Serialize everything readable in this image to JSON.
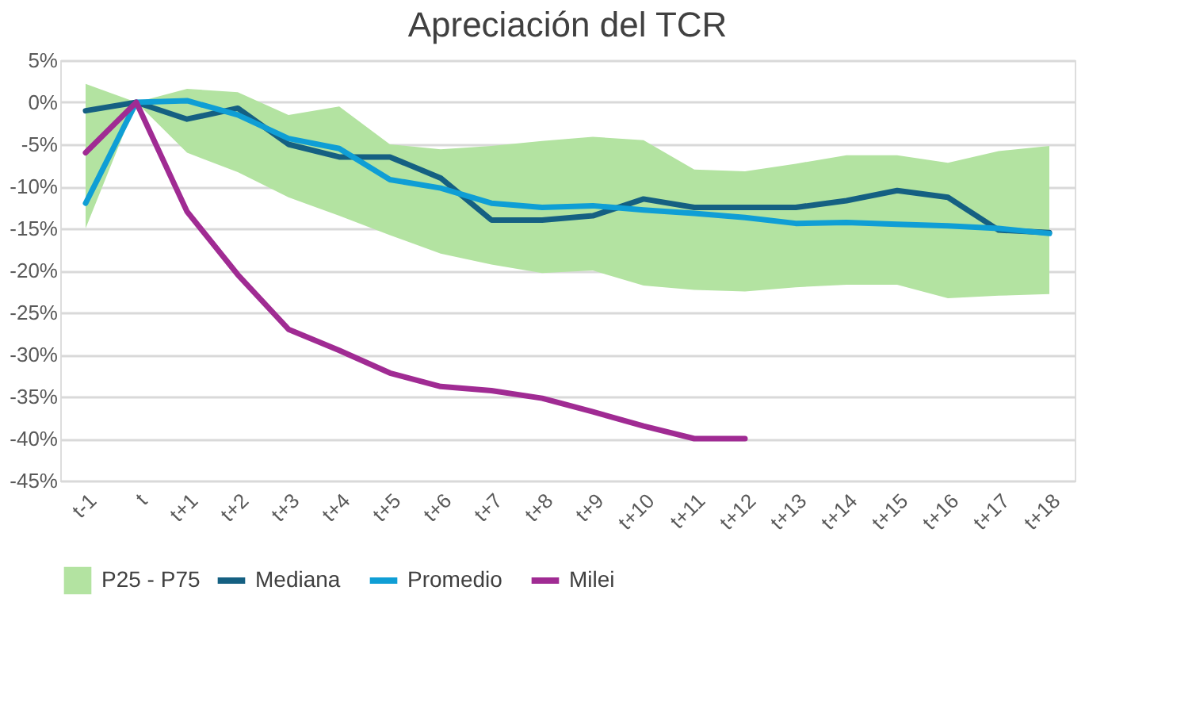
{
  "chart_data": {
    "type": "line",
    "title": "Apreciación del TCR",
    "categories": [
      "t-1",
      "t",
      "t+1",
      "t+2",
      "t+3",
      "t+4",
      "t+5",
      "t+6",
      "t+7",
      "t+8",
      "t+9",
      "t+10",
      "t+11",
      "t+12",
      "t+13",
      "t+14",
      "t+15",
      "t+16",
      "t+17",
      "t+18"
    ],
    "series": [
      {
        "name": "P25 - P75",
        "type": "area",
        "color": "#b3e3a1",
        "lower": [
          -15,
          0,
          -6,
          -8.3,
          -11.3,
          -13.5,
          -15.8,
          -18,
          -19.3,
          -20.3,
          -20,
          -21.8,
          -22.3,
          -22.5,
          -22,
          -21.7,
          -21.7,
          -23.3,
          -23,
          -22.8
        ],
        "values": [
          null,
          null,
          null,
          null,
          null,
          null,
          null,
          null,
          null,
          null,
          null,
          null,
          null,
          null,
          null,
          null,
          null,
          null,
          null,
          null
        ],
        "upper": [
          2.2,
          0,
          1.6,
          1.2,
          -1.5,
          -0.5,
          -5,
          -5.6,
          -5.2,
          -4.6,
          -4.1,
          -4.5,
          -8,
          -8.2,
          -7.3,
          -6.3,
          -6.3,
          -7.2,
          -5.8,
          -5.2
        ]
      },
      {
        "name": "Mediana",
        "type": "line",
        "color": "#156082",
        "values": [
          -1,
          0,
          -2,
          -0.7,
          -5,
          -6.5,
          -6.5,
          -9,
          -14,
          -14,
          -13.5,
          -11.5,
          -12.5,
          -12.5,
          -12.5,
          -11.7,
          -10.5,
          -11.3,
          -15.2,
          -15.5
        ]
      },
      {
        "name": "Promedio",
        "type": "line",
        "color": "#0f9ed5",
        "values": [
          -12,
          0,
          0.2,
          -1.5,
          -4.3,
          -5.5,
          -9.2,
          -10.2,
          -12,
          -12.5,
          -12.3,
          -12.8,
          -13.2,
          -13.7,
          -14.4,
          -14.3,
          -14.5,
          -14.7,
          -15,
          -15.6
        ]
      },
      {
        "name": "Milei",
        "type": "line",
        "color": "#a02b93",
        "values": [
          -6,
          0,
          -13,
          -20.5,
          -27,
          -29.5,
          -32.2,
          -33.8,
          -34.3,
          -35.2,
          -36.8,
          -38.5,
          -40,
          -40,
          null,
          null,
          null,
          null,
          null,
          null
        ]
      }
    ],
    "ylim": [
      -45,
      5
    ],
    "yticks": [
      {
        "value": 5,
        "label": "5%"
      },
      {
        "value": 0,
        "label": "0%"
      },
      {
        "value": -5,
        "label": "-5%"
      },
      {
        "value": -10,
        "label": "-10%"
      },
      {
        "value": -15,
        "label": "-15%"
      },
      {
        "value": -20,
        "label": "-20%"
      },
      {
        "value": -25,
        "label": "-25%"
      },
      {
        "value": -30,
        "label": "-30%"
      },
      {
        "value": -35,
        "label": "-35%"
      },
      {
        "value": -40,
        "label": "-40%"
      },
      {
        "value": -45,
        "label": "-45%"
      }
    ],
    "grid": "y",
    "legend": "bottom",
    "marker": "none",
    "line_style": "solid"
  }
}
